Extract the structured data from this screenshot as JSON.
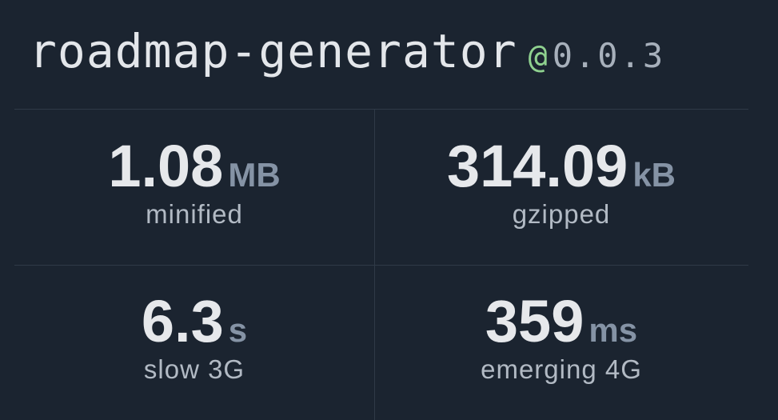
{
  "header": {
    "name": "roadmap-generator",
    "at": "@",
    "version": "0.0.3"
  },
  "stats": [
    {
      "value": "1.08",
      "unit": "MB",
      "label": "minified"
    },
    {
      "value": "314.09",
      "unit": "kB",
      "label": "gzipped"
    },
    {
      "value": "6.3",
      "unit": "s",
      "label": "slow 3G"
    },
    {
      "value": "359",
      "unit": "ms",
      "label": "emerging 4G"
    }
  ]
}
